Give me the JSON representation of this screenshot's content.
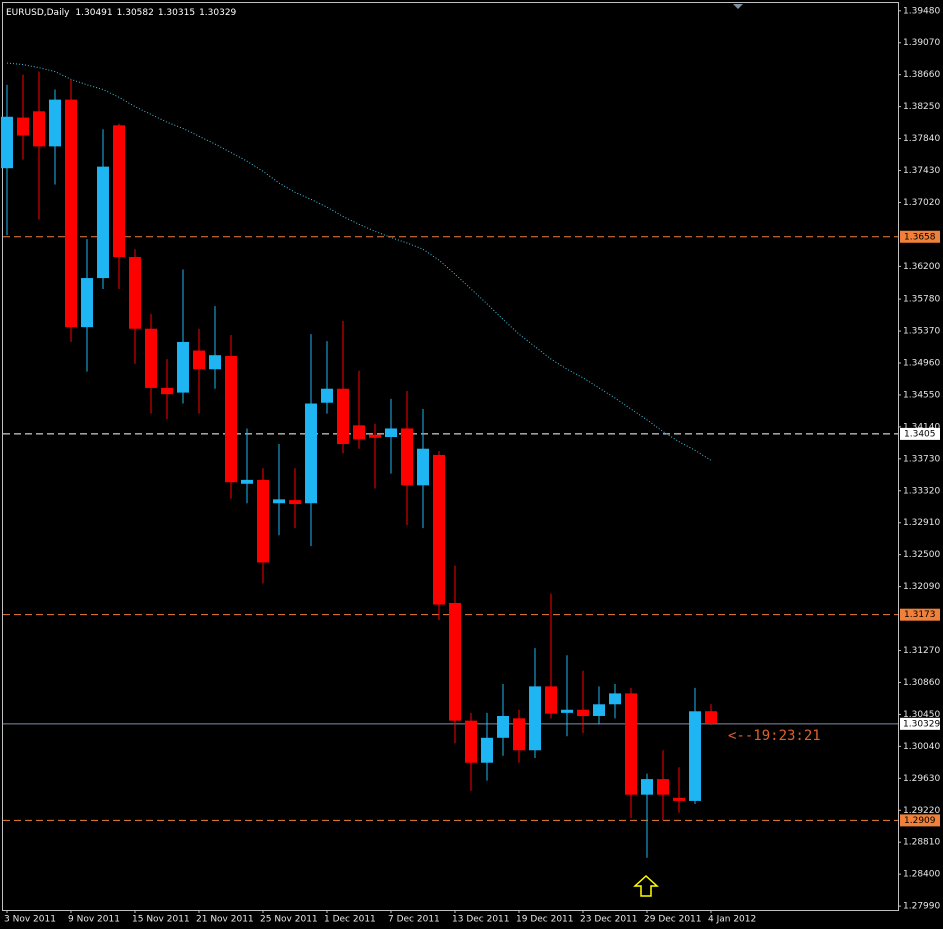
{
  "chart_data": {
    "type": "candlestick",
    "title": "EURUSD,Daily",
    "categories": [
      "3 Nov 2011",
      null,
      null,
      null,
      "9 Nov 2011",
      null,
      null,
      null,
      "15 Nov 2011",
      null,
      null,
      null,
      "21 Nov 2011",
      null,
      null,
      null,
      "25 Nov 2011",
      null,
      null,
      null,
      "1 Dec 2011",
      null,
      null,
      null,
      "7 Dec 2011",
      null,
      null,
      null,
      "13 Dec 2011",
      null,
      null,
      null,
      "19 Dec 2011",
      null,
      null,
      null,
      "23 Dec 2011",
      null,
      null,
      null,
      "29 Dec 2011",
      null,
      null,
      null,
      "4 Jan 2012"
    ],
    "open": [
      1.3746,
      1.3811,
      1.3819,
      1.3774,
      1.3834,
      1.3542,
      1.3605,
      1.3801,
      1.3632,
      1.354,
      1.3464,
      1.3458,
      1.3512,
      1.3488,
      1.3505,
      1.3341,
      1.3346,
      1.3316,
      1.332,
      1.3316,
      1.3445,
      1.3463,
      1.3416,
      1.3404,
      1.3401,
      1.3412,
      1.3339,
      1.3378,
      1.3188,
      1.3037,
      1.2983,
      1.3015,
      1.304,
      1.2999,
      1.3081,
      1.3047,
      1.3051,
      1.3043,
      1.3058,
      1.3072,
      1.2942,
      1.2962,
      1.2938,
      1.2934,
      1.30491
    ],
    "high": [
      1.3853,
      1.3866,
      1.387,
      1.3847,
      1.386,
      1.3655,
      1.3796,
      1.3803,
      1.3642,
      1.3559,
      1.3501,
      1.3616,
      1.354,
      1.3569,
      1.3532,
      1.3412,
      1.3361,
      1.3392,
      1.3361,
      1.3533,
      1.3524,
      1.355,
      1.3486,
      1.3418,
      1.345,
      1.346,
      1.3437,
      1.3383,
      1.3236,
      1.3047,
      1.3047,
      1.3084,
      1.3051,
      1.313,
      1.32,
      1.3121,
      1.3101,
      1.3081,
      1.3084,
      1.3079,
      1.2969,
      1.2999,
      1.2977,
      1.3079,
      1.30582
    ],
    "low": [
      1.366,
      1.3757,
      1.368,
      1.3725,
      1.3523,
      1.3485,
      1.3591,
      1.3591,
      1.3495,
      1.3431,
      1.3424,
      1.3444,
      1.3431,
      1.3463,
      1.3322,
      1.3316,
      1.3213,
      1.3275,
      1.3284,
      1.3261,
      1.3431,
      1.338,
      1.3386,
      1.3335,
      1.3354,
      1.3288,
      1.3284,
      1.3166,
      1.3008,
      1.2947,
      1.296,
      1.2992,
      1.2983,
      1.2989,
      1.304,
      1.3017,
      1.3021,
      1.3032,
      1.304,
      1.2912,
      1.2861,
      1.2909,
      1.2919,
      1.293,
      1.30315
    ],
    "close": [
      1.3812,
      1.3788,
      1.3774,
      1.3834,
      1.3542,
      1.3605,
      1.3748,
      1.3632,
      1.354,
      1.3464,
      1.3456,
      1.3523,
      1.3488,
      1.3506,
      1.3343,
      1.3346,
      1.324,
      1.3321,
      1.3315,
      1.3444,
      1.3463,
      1.3392,
      1.3398,
      1.34,
      1.3412,
      1.3339,
      1.3386,
      1.3186,
      1.3037,
      1.2983,
      1.3015,
      1.3043,
      1.2999,
      1.3081,
      1.3046,
      1.3051,
      1.3043,
      1.3058,
      1.3072,
      1.2942,
      1.2962,
      1.2942,
      1.2934,
      1.3049,
      1.30329
    ],
    "ma": [
      1.3881,
      1.3879,
      1.3875,
      1.387,
      1.386,
      1.3853,
      1.3847,
      1.3837,
      1.3825,
      1.3815,
      1.3805,
      1.3797,
      1.3787,
      1.3777,
      1.3766,
      1.3755,
      1.3742,
      1.3727,
      1.3715,
      1.3706,
      1.3696,
      1.3684,
      1.3674,
      1.3665,
      1.3657,
      1.365,
      1.3642,
      1.3628,
      1.361,
      1.3591,
      1.3572,
      1.3552,
      1.3533,
      1.3517,
      1.3501,
      1.3488,
      1.3477,
      1.3464,
      1.3451,
      1.3437,
      1.3423,
      1.3408,
      1.3395,
      1.3384,
      1.3371
    ],
    "up_color": "#1fb4f2",
    "down_color": "#ff0000",
    "ma_color": "#3fc8e8",
    "ylim": [
      1.2794,
      1.3958
    ],
    "yticks": [
      {
        "value": 1.3948,
        "label": "1.39480"
      },
      {
        "value": 1.3907,
        "label": "1.39070"
      },
      {
        "value": 1.3866,
        "label": "1.38660"
      },
      {
        "value": 1.3825,
        "label": "1.38250"
      },
      {
        "value": 1.3784,
        "label": "1.37840"
      },
      {
        "value": 1.3743,
        "label": "1.37430"
      },
      {
        "value": 1.3702,
        "label": "1.37020"
      },
      {
        "value": 1.362,
        "label": "1.36200"
      },
      {
        "value": 1.3578,
        "label": "1.35780"
      },
      {
        "value": 1.3537,
        "label": "1.35370"
      },
      {
        "value": 1.3496,
        "label": "1.34960"
      },
      {
        "value": 1.3455,
        "label": "1.34550"
      },
      {
        "value": 1.3414,
        "label": "1.34140"
      },
      {
        "value": 1.3373,
        "label": "1.33730"
      },
      {
        "value": 1.3332,
        "label": "1.33320"
      },
      {
        "value": 1.3291,
        "label": "1.32910"
      },
      {
        "value": 1.325,
        "label": "1.32500"
      },
      {
        "value": 1.3209,
        "label": "1.32090"
      },
      {
        "value": 1.3127,
        "label": "1.31270"
      },
      {
        "value": 1.3086,
        "label": "1.30860"
      },
      {
        "value": 1.3045,
        "label": "1.30450"
      },
      {
        "value": 1.3004,
        "label": "1.30040"
      },
      {
        "value": 1.2963,
        "label": "1.29630"
      },
      {
        "value": 1.2922,
        "label": "1.29220"
      },
      {
        "value": 1.2881,
        "label": "1.28810"
      },
      {
        "value": 1.284,
        "label": "1.28400"
      },
      {
        "value": 1.2799,
        "label": "1.27990"
      }
    ],
    "levels": [
      {
        "value": 1.3658,
        "color": "#f0803a"
      },
      {
        "value": 1.3405,
        "color": "#ffffff"
      },
      {
        "value": 1.3173,
        "color": "#f0803a"
      },
      {
        "value": 1.2909,
        "color": "#f0803a"
      }
    ],
    "current_price": 1.30329,
    "current_color": "#8090a8",
    "timer": "<--19:23:21"
  }
}
